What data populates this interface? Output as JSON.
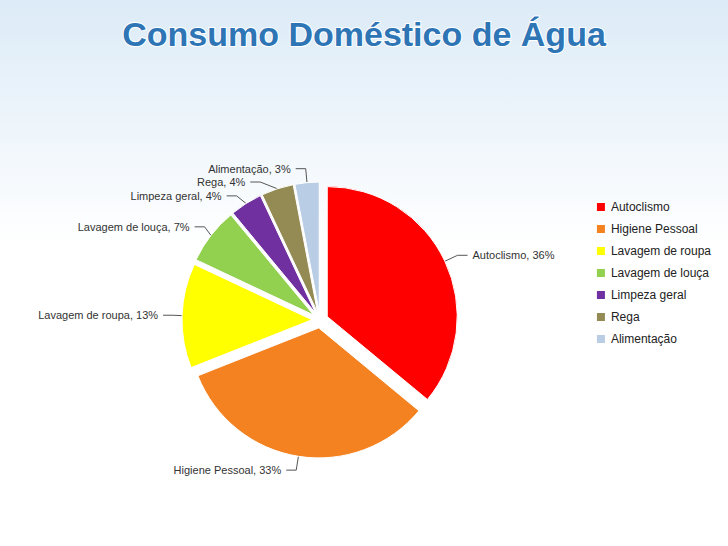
{
  "chart_data": {
    "type": "pie",
    "title": "Consumo Doméstico de Água",
    "categories": [
      "Autoclismo",
      "Higiene Pessoal",
      "Lavagem de roupa",
      "Lavagem de louça",
      "Limpeza geral",
      "Rega",
      "Alimentação"
    ],
    "values": [
      36,
      33,
      13,
      7,
      4,
      4,
      3
    ],
    "value_labels": [
      "Autoclismo, 36%",
      "Higiene Pessoal, 33%",
      "Lavagem de roupa, 13%",
      "Lavagem de louça, 7%",
      "Limpeza geral, 4%",
      "Rega, 4%",
      "Alimentação, 3%"
    ],
    "colors": [
      "#ff0000",
      "#f58220",
      "#ffff00",
      "#92d050",
      "#7030a0",
      "#948a54",
      "#b9cde5"
    ],
    "data_labels": true,
    "legend": "right"
  }
}
